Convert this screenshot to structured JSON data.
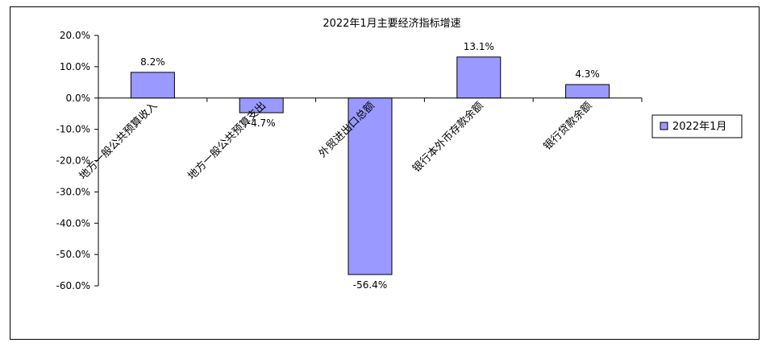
{
  "chart_data": {
    "type": "bar",
    "title": "2022年1月主要经济指标增速",
    "categories": [
      "地方一般公共预算收入",
      "地方一般公共预算支出",
      "外贸进出口总额",
      "银行本外币存款余额",
      "银行贷款余额"
    ],
    "series": [
      {
        "name": "2022年1月",
        "values": [
          8.2,
          -4.7,
          -56.4,
          13.1,
          4.3
        ]
      }
    ],
    "data_labels": [
      "8.2%",
      "-4.7%",
      "-56.4%",
      "13.1%",
      "4.3%"
    ],
    "yticks": [
      "20.0%",
      "10.0%",
      "0.0%",
      "-10.0%",
      "-20.0%",
      "-30.0%",
      "-40.0%",
      "-50.0%",
      "-60.0%"
    ],
    "ylim": [
      -60,
      20
    ],
    "xlabel": "",
    "ylabel": "",
    "grid": false,
    "legend_position": "right",
    "colors": {
      "bar_fill": "#9999ff",
      "bar_stroke": "#000000"
    }
  }
}
